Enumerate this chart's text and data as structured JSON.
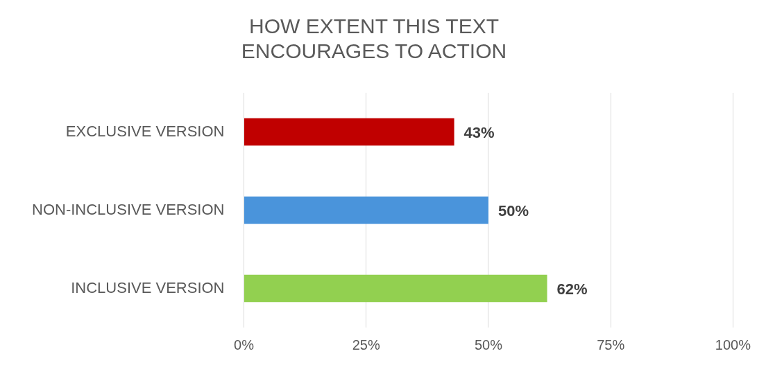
{
  "chart_data": {
    "type": "bar",
    "orientation": "horizontal",
    "title": "HOW EXTENT THIS TEXT ENCOURAGES TO ACTION",
    "categories": [
      "EXCLUSIVE VERSION",
      "NON-INCLUSIVE VERSION",
      "INCLUSIVE VERSION"
    ],
    "values": [
      43,
      50,
      62
    ],
    "colors": [
      "#c00000",
      "#4a94db",
      "#92d050"
    ],
    "value_labels": [
      "43%",
      "50%",
      "62%"
    ],
    "xlim": [
      0,
      100
    ],
    "xticks": [
      {
        "value": 0,
        "label": "0%"
      },
      {
        "value": 25,
        "label": "25%"
      },
      {
        "value": 50,
        "label": "50%"
      },
      {
        "value": 75,
        "label": "75%"
      },
      {
        "value": 100,
        "label": "100%"
      }
    ],
    "grid": "x",
    "legend": false
  }
}
